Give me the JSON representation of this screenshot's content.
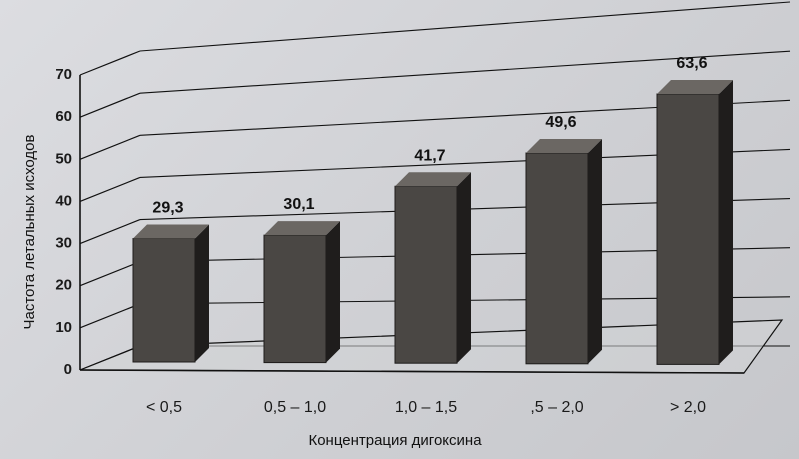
{
  "chart_data": {
    "type": "bar",
    "categories": [
      "< 0,5",
      "0,5 – 1,0",
      "1,0 – 1,5",
      ",5 – 2,0",
      "> 2,0"
    ],
    "values": [
      29.3,
      30.1,
      41.7,
      49.6,
      63.6
    ],
    "value_labels": [
      "29,3",
      "30,1",
      "41,7",
      "49,6",
      "63,6"
    ],
    "ylim": [
      0,
      70
    ],
    "yticks": [
      "0",
      "10",
      "20",
      "30",
      "40",
      "50",
      "60",
      "70"
    ],
    "ylabel": "Частота летальных исходов",
    "xlabel": "Концентрация дигоксина",
    "grid": true,
    "style": "3d",
    "bar_color": "#4a4744"
  }
}
